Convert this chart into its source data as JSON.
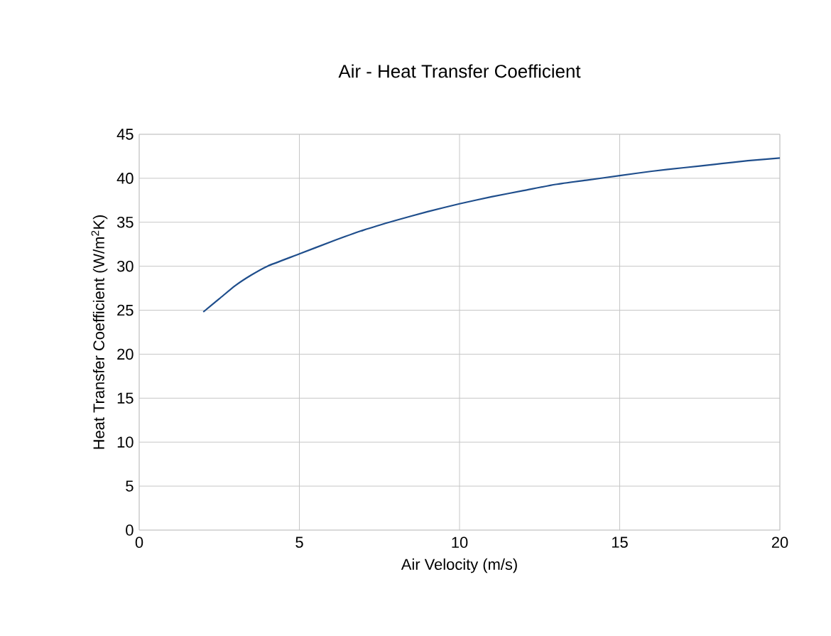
{
  "chart_data": {
    "type": "line",
    "title": "Air - Heat Transfer Coefficient",
    "xlabel": "Air Velocity (m/s)",
    "ylabel": "Heat Transfer Coefficient (W/m$^{2}$K)",
    "x": [
      2,
      2.5,
      3,
      3.5,
      4,
      5,
      6,
      7,
      8,
      9,
      10,
      11,
      12,
      13,
      14,
      15,
      16,
      17,
      18,
      19,
      20
    ],
    "series": [
      {
        "color": "#1f4e8c",
        "values": [
          24.8,
          26.3,
          27.8,
          29.0,
          30.0,
          31.4,
          32.8,
          34.1,
          35.2,
          36.2,
          37.1,
          37.9,
          38.6,
          39.3,
          39.8,
          40.3,
          40.8,
          41.2,
          41.6,
          42.0,
          42.3
        ]
      }
    ],
    "xlim": [
      0,
      20
    ],
    "xticks": [
      0,
      5,
      10,
      15,
      20
    ],
    "ylim": [
      0,
      45
    ],
    "yticks": [
      0,
      5,
      10,
      15,
      20,
      25,
      30,
      35,
      40,
      45
    ],
    "grid": true,
    "marker": "none",
    "line_style": "solid"
  }
}
